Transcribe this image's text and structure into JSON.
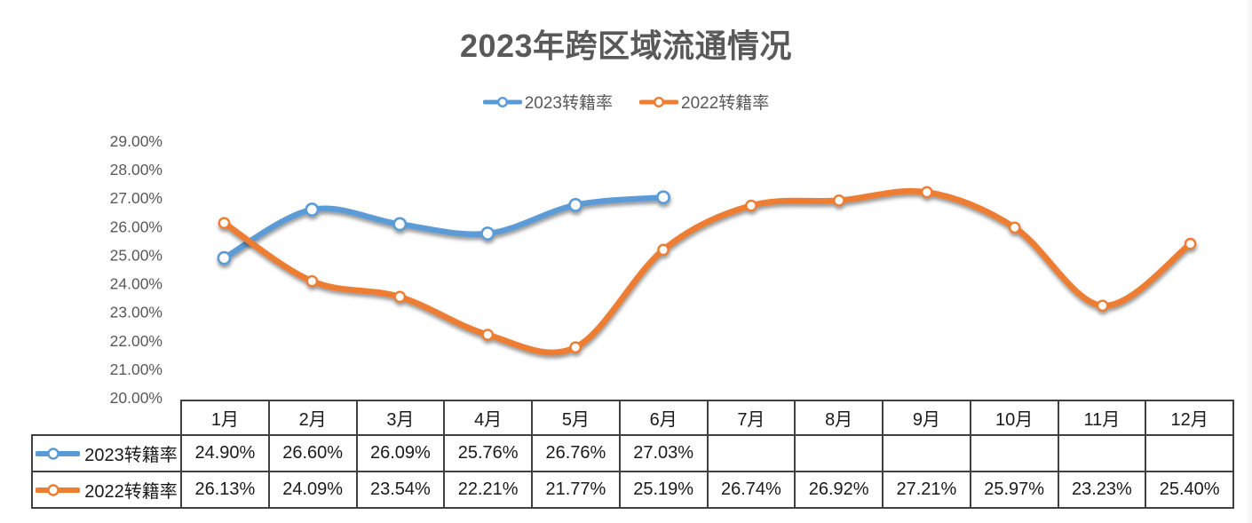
{
  "title": "2023年跨区域流通情况",
  "legend": [
    {
      "label": "2023转籍率",
      "color": "#5B9BD5"
    },
    {
      "label": "2022转籍率",
      "color": "#ED7D31"
    }
  ],
  "chart_data": {
    "type": "line",
    "smooth": true,
    "grid": false,
    "legend_position": "top",
    "title": "2023年跨区域流通情况",
    "categories": [
      "1月",
      "2月",
      "3月",
      "4月",
      "5月",
      "6月",
      "7月",
      "8月",
      "9月",
      "10月",
      "11月",
      "12月"
    ],
    "series": [
      {
        "name": "2023转籍率",
        "color": "#5B9BD5",
        "marker": "open-circle",
        "values": [
          24.9,
          26.6,
          26.09,
          25.76,
          26.76,
          27.03,
          null,
          null,
          null,
          null,
          null,
          null
        ]
      },
      {
        "name": "2022转籍率",
        "color": "#ED7D31",
        "marker": "open-circle",
        "values": [
          26.13,
          24.09,
          23.54,
          22.21,
          21.77,
          25.19,
          26.74,
          26.92,
          27.21,
          25.97,
          23.23,
          25.4
        ]
      }
    ],
    "ylim": [
      20,
      29
    ],
    "yticks": [
      "29.00%",
      "28.00%",
      "27.00%",
      "26.00%",
      "25.00%",
      "24.00%",
      "23.00%",
      "22.00%",
      "21.00%",
      "20.00%"
    ],
    "table_values": [
      [
        "24.90%",
        "26.60%",
        "26.09%",
        "25.76%",
        "26.76%",
        "27.03%",
        "",
        "",
        "",
        "",
        "",
        ""
      ],
      [
        "26.13%",
        "24.09%",
        "23.54%",
        "22.21%",
        "21.77%",
        "25.19%",
        "26.74%",
        "26.92%",
        "27.21%",
        "25.97%",
        "23.23%",
        "25.40%"
      ]
    ]
  }
}
